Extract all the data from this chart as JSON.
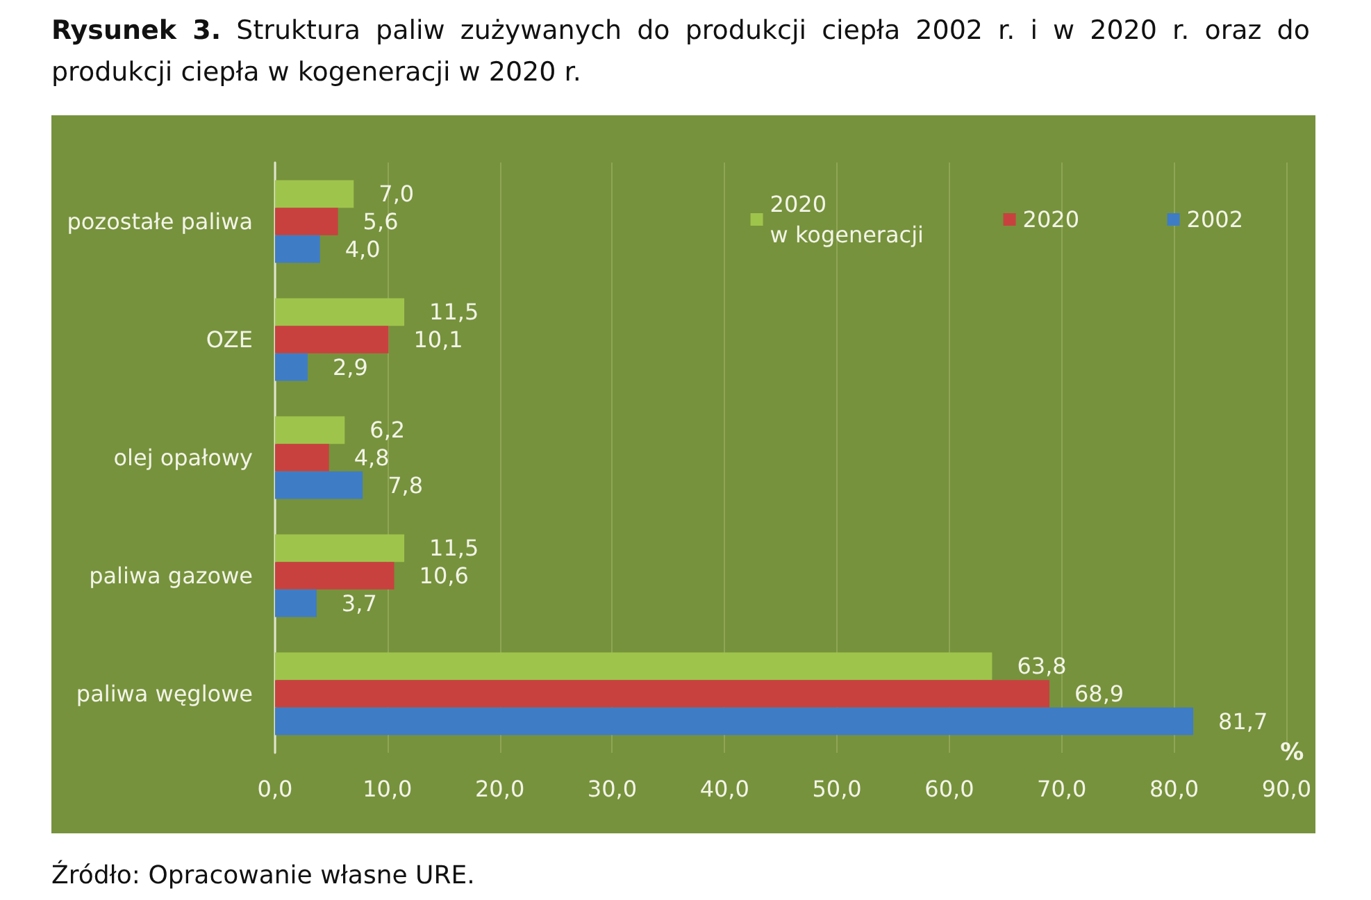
{
  "chart_data": {
    "type": "bar",
    "orientation": "horizontal",
    "title": "Rysunek 3. Struktura paliw zużywanych do produkcji ciepła 2002 r. i w 2020 r. oraz do produkcji ciepła w kogeneracji w 2020 r.",
    "xlabel": "%",
    "annotations": [
      "Źródło: Opracowanie własne URE."
    ],
    "categories": [
      "pozostałe paliwa",
      "OZE",
      "olej opałowy",
      "paliwa gazowe",
      "paliwa węglowe"
    ],
    "series": [
      {
        "name": "2020\nw kogeneracji",
        "color": "#9fc44c",
        "values": [
          7.0,
          11.5,
          6.2,
          11.5,
          63.8
        ],
        "value_labels": [
          "7,0",
          "11,5",
          "6,2",
          "11,5",
          "63,8"
        ]
      },
      {
        "name": "2020",
        "color": "#c8413f",
        "values": [
          5.6,
          10.1,
          4.8,
          10.6,
          68.9
        ],
        "value_labels": [
          "5,6",
          "10,1",
          "4,8",
          "10,6",
          "68,9"
        ]
      },
      {
        "name": "2002",
        "color": "#3f7cc6",
        "values": [
          4.0,
          2.9,
          7.8,
          3.7,
          81.7
        ],
        "value_labels": [
          "4,0",
          "2,9",
          "7,8",
          "3,7",
          "81,7"
        ]
      }
    ],
    "xlim": [
      0,
      90
    ],
    "xticks": [
      {
        "value": 0,
        "label": "0,0"
      },
      {
        "value": 10,
        "label": "10,0"
      },
      {
        "value": 20,
        "label": "20,0"
      },
      {
        "value": 30,
        "label": "30,0"
      },
      {
        "value": 40,
        "label": "40,0"
      },
      {
        "value": 50,
        "label": "50,0"
      },
      {
        "value": 60,
        "label": "60,0"
      },
      {
        "value": 70,
        "label": "70,0"
      },
      {
        "value": 80,
        "label": "80,0"
      },
      {
        "value": 90,
        "label": "90,0"
      }
    ],
    "grid": "x",
    "legend": "top right"
  }
}
